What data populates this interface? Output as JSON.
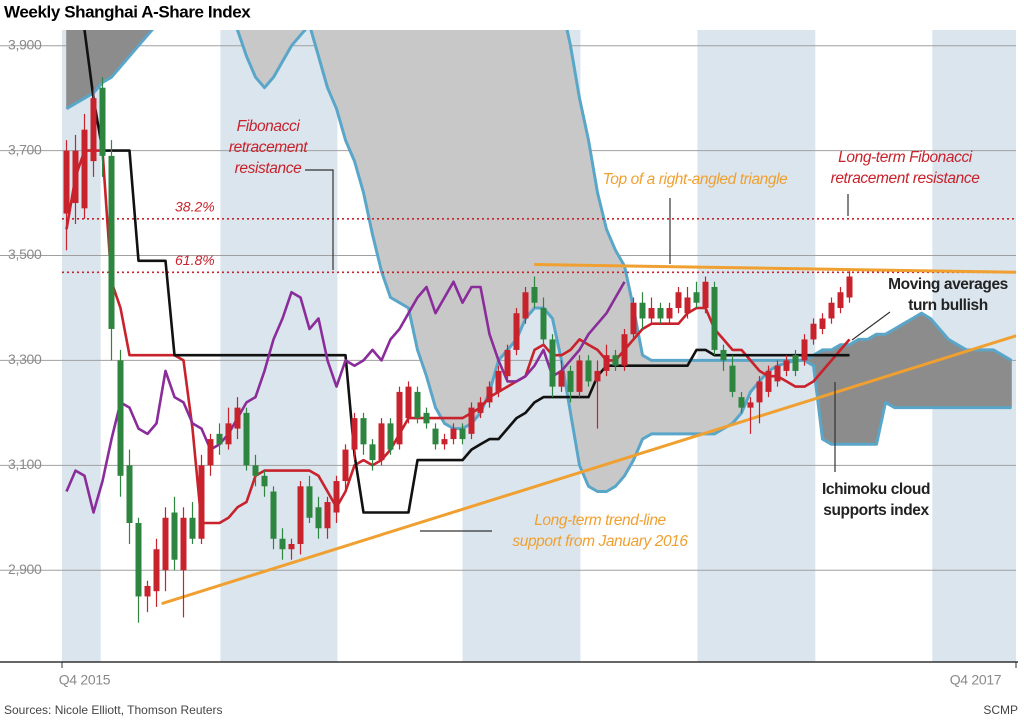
{
  "chart_data": {
    "type": "candlestick",
    "title": "Weekly Shanghai A-Share Index",
    "source": "Sources: Nicole Elliott, Thomson Reuters",
    "credit": "SCMP",
    "categories": [
      null,
      null,
      "Q4 2015",
      null,
      null,
      null,
      null,
      null,
      null,
      null,
      null,
      null,
      null,
      null,
      null,
      null,
      null,
      null,
      null,
      null,
      null,
      null,
      null,
      null,
      null,
      null,
      null,
      null,
      null,
      null,
      null,
      null,
      null,
      null,
      null,
      null,
      null,
      null,
      null,
      null,
      null,
      null,
      null,
      null,
      null,
      null,
      null,
      null,
      null,
      null,
      null,
      null,
      null,
      null,
      null,
      null,
      null,
      null,
      null,
      null,
      null,
      null,
      null,
      null,
      null,
      null,
      null,
      null,
      null,
      null,
      null,
      null,
      null,
      null,
      null,
      null,
      null,
      null,
      null,
      null,
      null,
      null,
      null,
      null,
      null,
      null,
      null,
      null,
      null,
      null,
      null,
      null,
      null,
      null,
      null,
      null,
      null,
      null,
      null,
      null,
      null,
      "Q4 2017",
      null,
      null,
      null,
      null
    ],
    "open": [
      3580,
      3600,
      3590,
      3680,
      3820,
      3690,
      3300,
      3100,
      2990,
      2850,
      2860,
      2900,
      3010,
      2900,
      3000,
      2960,
      3100,
      3160,
      3140,
      3170,
      3200,
      3100,
      3080,
      3050,
      2960,
      2940,
      2950,
      3060,
      3020,
      2980,
      3010,
      3070,
      3130,
      3190,
      3140,
      3110,
      3180,
      3140,
      3190,
      3240,
      3200,
      3170,
      3140,
      3150,
      3170,
      3160,
      3200,
      3220,
      3240,
      3270,
      3320,
      3380,
      3440,
      3400,
      3340,
      3250,
      3280,
      3240,
      3300,
      3260,
      3280,
      3310,
      3290,
      3350,
      3410,
      3380,
      3400,
      3380,
      3400,
      3390,
      3430,
      3400,
      3440,
      3320,
      3290,
      3230,
      3210,
      3220,
      3240,
      3260,
      3280,
      3310,
      3300,
      3340,
      3360,
      3380,
      3400,
      3420,
      null,
      null,
      null,
      null,
      null,
      null,
      null,
      null,
      null,
      null,
      null,
      null,
      null,
      null,
      null,
      null,
      null,
      null
    ],
    "high": [
      3720,
      3730,
      3770,
      3820,
      3840,
      3720,
      3320,
      3130,
      3000,
      2880,
      2960,
      3020,
      3040,
      3020,
      3030,
      3120,
      3160,
      3180,
      3210,
      3230,
      3210,
      3120,
      3090,
      3060,
      2980,
      2960,
      3070,
      3080,
      3040,
      3040,
      3080,
      3140,
      3200,
      3200,
      3150,
      3190,
      3190,
      3250,
      3260,
      3250,
      3210,
      3180,
      3160,
      3180,
      3180,
      3220,
      3230,
      3260,
      3290,
      3330,
      3400,
      3440,
      3460,
      3420,
      3350,
      3300,
      3290,
      3310,
      3310,
      3300,
      3330,
      3320,
      3360,
      3420,
      3430,
      3420,
      3410,
      3410,
      3440,
      3440,
      3450,
      3460,
      3450,
      3330,
      3310,
      3240,
      3230,
      3270,
      3290,
      3300,
      3310,
      3320,
      3350,
      3380,
      3390,
      3420,
      3440,
      3470,
      null,
      null,
      null,
      null,
      null,
      null,
      null,
      null,
      null,
      null,
      null,
      null,
      null,
      null,
      null,
      null,
      null,
      null
    ],
    "low": [
      3510,
      3560,
      3570,
      3650,
      3650,
      3300,
      3040,
      2950,
      2800,
      2820,
      2830,
      2860,
      2900,
      2810,
      2950,
      2950,
      3080,
      3120,
      3130,
      3150,
      3090,
      3060,
      3040,
      2940,
      2920,
      2920,
      2930,
      2990,
      2960,
      2960,
      2990,
      3050,
      3110,
      3120,
      3090,
      3100,
      3120,
      3130,
      3180,
      3180,
      3170,
      3130,
      3130,
      3140,
      3140,
      3150,
      3190,
      3210,
      3230,
      3260,
      3310,
      3370,
      3400,
      3330,
      3230,
      3240,
      3220,
      3230,
      3250,
      3170,
      3270,
      3280,
      3280,
      3340,
      3360,
      3370,
      3370,
      3370,
      3390,
      3380,
      3400,
      3390,
      3310,
      3280,
      3230,
      3200,
      3160,
      3180,
      3230,
      3250,
      3270,
      3270,
      3290,
      3330,
      3350,
      3370,
      3390,
      3410,
      null,
      null,
      null,
      null,
      null,
      null,
      null,
      null,
      null,
      null,
      null,
      null,
      null,
      null,
      null,
      null,
      null,
      null
    ],
    "close": [
      3700,
      3700,
      3740,
      3800,
      3690,
      3360,
      3080,
      2990,
      2850,
      2870,
      2940,
      3000,
      2920,
      3000,
      2960,
      3100,
      3150,
      3140,
      3180,
      3210,
      3100,
      3080,
      3060,
      2960,
      2940,
      2950,
      3060,
      3000,
      2980,
      3030,
      3070,
      3130,
      3190,
      3140,
      3110,
      3180,
      3130,
      3240,
      3250,
      3190,
      3180,
      3140,
      3150,
      3170,
      3150,
      3210,
      3220,
      3250,
      3280,
      3320,
      3390,
      3430,
      3410,
      3340,
      3250,
      3280,
      3240,
      3300,
      3260,
      3280,
      3310,
      3290,
      3350,
      3410,
      3380,
      3400,
      3380,
      3400,
      3430,
      3420,
      3410,
      3450,
      3320,
      3300,
      3240,
      3210,
      3220,
      3260,
      3280,
      3290,
      3300,
      3280,
      3340,
      3370,
      3380,
      3410,
      3430,
      3460,
      null,
      null,
      null,
      null,
      null,
      null,
      null,
      null,
      null,
      null,
      null,
      null,
      null,
      null,
      null,
      null,
      null,
      null
    ],
    "up_color": "#c8222c",
    "down_color": "#2e8540",
    "series": [
      {
        "color": "#c8222c",
        "values": [
          3550,
          3650,
          3700,
          3700,
          3700,
          3450,
          3400,
          3310,
          3310,
          3310,
          3310,
          3310,
          3310,
          3300,
          3170,
          2990,
          2990,
          2990,
          3000,
          3020,
          3030,
          3080,
          3090,
          3090,
          3090,
          3090,
          3090,
          3090,
          3080,
          3050,
          3020,
          3050,
          3100,
          3110,
          3100,
          3110,
          3130,
          3160,
          3190,
          3190,
          3190,
          3190,
          3190,
          3190,
          3190,
          3200,
          3210,
          3230,
          3240,
          3250,
          3260,
          3270,
          3320,
          3330,
          3310,
          3310,
          3320,
          3340,
          3330,
          3320,
          3300,
          3300,
          3320,
          3340,
          3360,
          3370,
          3370,
          3370,
          3370,
          3390,
          3400,
          3400,
          3360,
          3340,
          3320,
          3320,
          3300,
          3280,
          3270,
          3270,
          3260,
          3250,
          3250,
          3260,
          3280,
          3300,
          3320,
          3340,
          null,
          null,
          null,
          null,
          null,
          null,
          null,
          null,
          null,
          null,
          null,
          null,
          null,
          null,
          null,
          null,
          null,
          null
        ]
      },
      {
        "color": "#111111",
        "values": [
          null,
          null,
          3930,
          3800,
          3700,
          3700,
          3700,
          3700,
          3490,
          3490,
          3490,
          3490,
          3310,
          3310,
          3310,
          3310,
          3310,
          3310,
          3310,
          3310,
          3310,
          3310,
          3310,
          3310,
          3310,
          3310,
          3310,
          3310,
          3310,
          3310,
          3310,
          3310,
          3120,
          3010,
          3010,
          3010,
          3010,
          3010,
          3010,
          3110,
          3110,
          3110,
          3110,
          3110,
          3110,
          3130,
          3140,
          3150,
          3150,
          3170,
          3190,
          3200,
          3220,
          3230,
          3230,
          3230,
          3230,
          3230,
          3230,
          3270,
          3290,
          3290,
          3290,
          3290,
          3290,
          3290,
          3290,
          3290,
          3290,
          3290,
          3320,
          3320,
          3310,
          3310,
          3310,
          3310,
          3310,
          3310,
          3310,
          3310,
          3310,
          3310,
          3310,
          3310,
          3310,
          3310,
          3310,
          3310,
          null,
          null,
          null,
          null,
          null,
          null,
          null,
          null,
          null,
          null,
          null,
          null,
          null,
          null,
          null,
          null,
          null,
          null
        ]
      },
      {
        "color": "#8a2d9a",
        "values": [
          3050,
          3090,
          3080,
          3010,
          3070,
          3150,
          3220,
          3210,
          3170,
          3160,
          3180,
          3280,
          3230,
          3220,
          3180,
          3170,
          3130,
          3140,
          3160,
          3190,
          3220,
          3230,
          3280,
          3340,
          3380,
          3430,
          3420,
          3360,
          3380,
          3300,
          3250,
          3300,
          3290,
          3300,
          3320,
          3300,
          3340,
          3360,
          3390,
          3420,
          3440,
          3390,
          3420,
          3450,
          3410,
          3440,
          3440,
          3350,
          3300,
          3260,
          3260,
          3270,
          3290,
          3320,
          3270,
          3280,
          3300,
          3320,
          3350,
          3370,
          3390,
          3420,
          3450,
          null,
          null,
          null,
          null,
          null,
          null,
          null,
          null,
          null,
          null,
          null,
          null,
          null,
          null,
          null,
          null,
          null,
          null,
          null,
          null,
          null,
          null,
          null,
          null,
          null,
          null,
          null,
          null,
          null,
          null,
          null,
          null,
          null,
          null,
          null,
          null,
          null,
          null,
          null,
          null,
          null,
          null,
          null
        ]
      }
    ],
    "cloud": {
      "line_color": "#5aa6c8",
      "fill_colors": [
        "#c8c8c8",
        "#8c8c8c"
      ],
      "span_a": [
        3780,
        3790,
        3800,
        3810,
        3830,
        3840,
        3860,
        3880,
        3900,
        3920,
        3940,
        3960,
        3990,
        4000,
        4000,
        4000,
        4000,
        4000,
        4000,
        4000,
        4000,
        4000,
        4000,
        4000,
        4000,
        4000,
        4000,
        4000,
        4000,
        4000,
        4000,
        4000,
        4000,
        4000,
        4000,
        4000,
        4000,
        4000,
        4000,
        4000,
        4000,
        4000,
        4000,
        4000,
        4000,
        4000,
        4000,
        4000,
        4000,
        4000,
        4000,
        4000,
        4000,
        4000,
        4000,
        3980,
        3900,
        3800,
        3720,
        3620,
        3550,
        3510,
        3480,
        3400,
        3310,
        3300,
        3300,
        3300,
        3300,
        3300,
        3300,
        3300,
        3300,
        3300,
        3300,
        3300,
        3300,
        3300,
        3300,
        3300,
        3300,
        3300,
        3300,
        3290,
        3150,
        3140,
        3140,
        3140,
        3140,
        3140,
        3140,
        3220,
        3210,
        3210,
        3210,
        3210,
        3210,
        3210,
        3210,
        3210,
        3210,
        3210,
        3210,
        3210,
        3210,
        3210
      ],
      "span_b": [
        4000,
        4000,
        4000,
        4000,
        4000,
        4000,
        4000,
        4000,
        4000,
        4000,
        4000,
        4000,
        4000,
        4000,
        4000,
        4000,
        4000,
        4000,
        4000,
        3930,
        3880,
        3840,
        3820,
        3840,
        3870,
        3900,
        3920,
        3940,
        3880,
        3820,
        3780,
        3720,
        3680,
        3620,
        3540,
        3470,
        3420,
        3410,
        3400,
        3320,
        3270,
        3210,
        3180,
        3170,
        3170,
        3180,
        3200,
        3240,
        3300,
        3320,
        3340,
        3380,
        3400,
        3400,
        3380,
        3300,
        3200,
        3100,
        3060,
        3050,
        3050,
        3060,
        3080,
        3110,
        3150,
        3160,
        3160,
        3160,
        3160,
        3160,
        3160,
        3160,
        3160,
        3170,
        3180,
        3200,
        3240,
        3260,
        3280,
        3290,
        3295,
        3300,
        3300,
        3310,
        3320,
        3320,
        3330,
        3330,
        3340,
        3340,
        3350,
        3350,
        3360,
        3370,
        3380,
        3390,
        3380,
        3360,
        3340,
        3330,
        3320,
        3320,
        3320,
        3320,
        3310,
        3300
      ]
    },
    "trend_lines": [
      {
        "color": "#f0a030",
        "points": [
          [
            10.7,
            2837
          ],
          [
            105.5,
            3347
          ]
        ]
      },
      {
        "color": "#f0a030",
        "points": [
          [
            52.1,
            3483
          ],
          [
            105.5,
            3468
          ]
        ]
      }
    ],
    "reference_lines": [
      {
        "label": "38.2%",
        "value": 3570,
        "color": "#c8222c"
      },
      {
        "label": "61.8%",
        "value": 3468,
        "color": "#c8222c"
      }
    ],
    "annotations": [
      {
        "lines": [
          "Fibonacci",
          "retracement",
          "resistance"
        ],
        "color": "#c8222c"
      },
      {
        "lines": [
          "Long-term Fibonacci",
          "retracement resistance"
        ],
        "color": "#c8222c"
      },
      {
        "lines": [
          "Top of a right-angled triangle"
        ],
        "color": "#f0a030"
      },
      {
        "lines": [
          "Moving averages",
          "turn bullish"
        ],
        "color": "#222222"
      },
      {
        "lines": [
          "Ichimoku cloud",
          "supports index"
        ],
        "color": "#222222"
      },
      {
        "lines": [
          "Long-term trend-line",
          "support from January 2016"
        ],
        "color": "#f0a030"
      }
    ],
    "quarter_shading": {
      "color": "#dbe5ee",
      "periods": [
        [
          -0.5,
          3.8
        ],
        [
          17.1,
          30.1
        ],
        [
          44,
          57.1
        ],
        [
          70.1,
          83.2
        ],
        [
          96.2,
          105.5
        ]
      ]
    },
    "ylim": [
      2725,
      3930
    ],
    "yticks": [
      {
        "value": 2900,
        "label": "2,900"
      },
      {
        "value": 3100,
        "label": "3,100"
      },
      {
        "value": 3300,
        "label": "3,300"
      },
      {
        "value": 3500,
        "label": "3,500"
      },
      {
        "value": 3700,
        "label": "3,700"
      },
      {
        "value": 3900,
        "label": "3,900"
      }
    ],
    "grid": true
  }
}
